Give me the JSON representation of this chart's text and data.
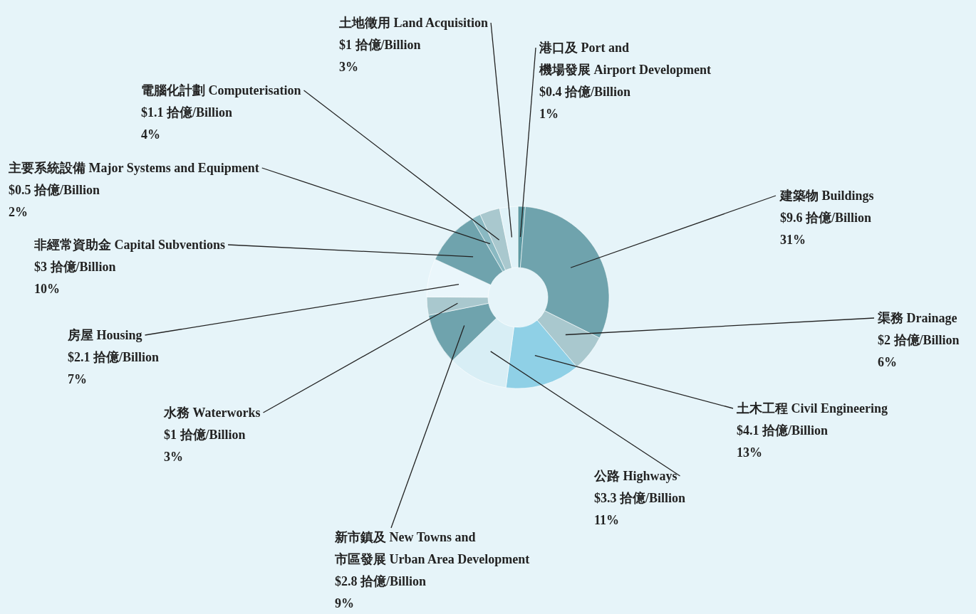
{
  "chart_data": {
    "type": "donut",
    "categories": [
      "港口及 Port and\n機場發展 Airport Development",
      "建築物 Buildings",
      "渠務 Drainage",
      "土木工程 Civil Engineering",
      "公路 Highways",
      "新市鎮及 New Towns and\n市區發展 Urban Area Development",
      "水務 Waterworks",
      "房屋 Housing",
      "非經常資助金 Capital Subventions",
      "主要系統設備 Major Systems and Equipment",
      "電腦化計劃 Computerisation",
      "土地徵用 Land Acquisition"
    ],
    "values": [
      0.4,
      9.6,
      2,
      4.1,
      3.3,
      2.8,
      1,
      2.1,
      3,
      0.5,
      1.1,
      1
    ],
    "value_labels": [
      "$0.4 拾億/Billion\n1%",
      "$9.6 拾億/Billion\n31%",
      "$2 拾億/Billion\n6%",
      "$4.1 拾億/Billion\n13%",
      "$3.3 拾億/Billion\n11%",
      "$2.8 拾億/Billion\n9%",
      "$1 拾億/Billion\n3%",
      "$2.1 拾億/Billion\n7%",
      "$3 拾億/Billion\n10%",
      "$0.5 拾億/Billion\n2%",
      "$1.1 拾億/Billion\n4%",
      "$1 拾億/Billion\n3%"
    ],
    "colors": [
      "#5e9aa3",
      "#6fa3ad",
      "#a9c8ce",
      "#8fd0e6",
      "#d8eef5",
      "#6fa3ad",
      "#a9c8ce",
      "#eaf6fb",
      "#6fa3ad",
      "#8ab9c2",
      "#a9c8ce",
      "#e0f2f8"
    ]
  }
}
